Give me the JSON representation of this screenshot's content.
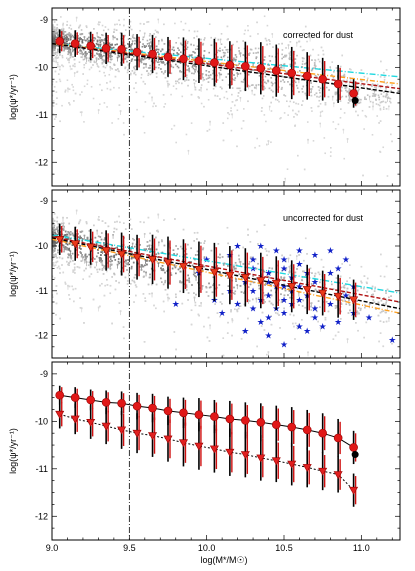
{
  "chart_data": [
    {
      "type": "scatter",
      "annotation": "corrected for dust",
      "ylabel": "log(ψ*/yr⁻¹)",
      "xlim": [
        9.0,
        11.25
      ],
      "ylim": [
        -12.5,
        -8.75
      ],
      "xticks": [
        9.0,
        9.5,
        10.0,
        10.5,
        11.0
      ],
      "yticks": [
        -9,
        -10,
        -11,
        -12
      ],
      "ytick_labels": [
        "-9",
        "-10",
        "-11",
        "-12"
      ],
      "vline_x": 9.5,
      "binned_medians": {
        "x": [
          9.05,
          9.15,
          9.25,
          9.35,
          9.45,
          9.55,
          9.65,
          9.75,
          9.85,
          9.95,
          10.05,
          10.15,
          10.25,
          10.35,
          10.45,
          10.55,
          10.65,
          10.75,
          10.85,
          10.95
        ],
        "y": [
          -9.45,
          -9.5,
          -9.55,
          -9.6,
          -9.62,
          -9.68,
          -9.72,
          -9.78,
          -9.82,
          -9.86,
          -9.9,
          -9.95,
          -9.98,
          -10.02,
          -10.07,
          -10.12,
          -10.18,
          -10.25,
          -10.35,
          -10.55
        ],
        "yerr": [
          0.25,
          0.28,
          0.3,
          0.33,
          0.35,
          0.38,
          0.4,
          0.42,
          0.45,
          0.47,
          0.5,
          0.5,
          0.52,
          0.55,
          0.55,
          0.55,
          0.5,
          0.45,
          0.4,
          0.3
        ]
      },
      "extra_point": {
        "x": 10.96,
        "y": -10.7
      },
      "fits": [
        {
          "x": [
            9.0,
            11.25
          ],
          "y": [
            -9.5,
            -10.2
          ],
          "color": "#20d8e0"
        },
        {
          "x": [
            9.0,
            11.25
          ],
          "y": [
            -9.5,
            -10.35
          ],
          "color": "#ffa020"
        },
        {
          "x": [
            9.0,
            11.25
          ],
          "y": [
            -9.5,
            -10.45
          ],
          "color": "#b01010"
        },
        {
          "x": [
            9.0,
            11.25
          ],
          "y": [
            -9.5,
            -10.55
          ],
          "color": "#000000"
        }
      ]
    },
    {
      "type": "scatter",
      "annotation": "uncorrected for dust",
      "ylabel": "log(ψ*/yr⁻¹)",
      "xlim": [
        9.0,
        11.25
      ],
      "ylim": [
        -12.5,
        -8.75
      ],
      "xticks": [
        9.0,
        9.5,
        10.0,
        10.5,
        11.0
      ],
      "yticks": [
        -9,
        -10,
        -11,
        -12
      ],
      "ytick_labels": [
        "-9",
        "-10",
        "-11",
        "-12"
      ],
      "vline_x": 9.5,
      "binned_medians": {
        "x": [
          9.05,
          9.15,
          9.25,
          9.35,
          9.45,
          9.55,
          9.65,
          9.75,
          9.85,
          9.95,
          10.05,
          10.15,
          10.25,
          10.35,
          10.45,
          10.55,
          10.65,
          10.75,
          10.85,
          10.95
        ],
        "y": [
          -9.85,
          -9.95,
          -10.02,
          -10.1,
          -10.18,
          -10.25,
          -10.3,
          -10.37,
          -10.45,
          -10.52,
          -10.58,
          -10.65,
          -10.7,
          -10.77,
          -10.83,
          -10.9,
          -10.97,
          -11.05,
          -11.12,
          -11.2
        ],
        "yerr": [
          0.35,
          0.38,
          0.4,
          0.45,
          0.48,
          0.5,
          0.55,
          0.58,
          0.6,
          0.62,
          0.65,
          0.65,
          0.65,
          0.62,
          0.6,
          0.58,
          0.55,
          0.5,
          0.48,
          0.45
        ]
      },
      "blue_stars": [
        [
          10.3,
          -10.5
        ],
        [
          10.4,
          -10.8
        ],
        [
          10.5,
          -11.2
        ],
        [
          10.6,
          -10.9
        ],
        [
          10.7,
          -11.4
        ],
        [
          10.5,
          -10.3
        ],
        [
          10.4,
          -11.6
        ],
        [
          10.8,
          -10.6
        ],
        [
          10.6,
          -11.8
        ],
        [
          10.2,
          -11.3
        ],
        [
          10.7,
          -10.2
        ],
        [
          10.3,
          -11.0
        ],
        [
          10.9,
          -11.1
        ],
        [
          10.5,
          -11.5
        ],
        [
          10.45,
          -10.1
        ],
        [
          10.65,
          -11.9
        ],
        [
          10.55,
          -10.7
        ],
        [
          10.35,
          -11.7
        ],
        [
          10.75,
          -11.0
        ],
        [
          10.25,
          -10.8
        ],
        [
          10.6,
          -10.4
        ],
        [
          10.85,
          -10.5
        ],
        [
          10.1,
          -11.5
        ],
        [
          10.4,
          -12.0
        ],
        [
          10.7,
          -11.6
        ],
        [
          10.15,
          -10.2
        ],
        [
          10.95,
          -10.9
        ],
        [
          10.5,
          -12.2
        ],
        [
          10.3,
          -10.3
        ],
        [
          10.8,
          -11.3
        ],
        [
          10.65,
          -10.6
        ],
        [
          10.45,
          -11.4
        ],
        [
          10.55,
          -11.0
        ],
        [
          10.35,
          -10.0
        ],
        [
          10.9,
          -10.3
        ],
        [
          9.95,
          -10.6
        ],
        [
          10.05,
          -11.2
        ],
        [
          10.6,
          -11.2
        ],
        [
          10.75,
          -11.8
        ],
        [
          10.25,
          -11.9
        ],
        [
          10.4,
          -10.6
        ],
        [
          10.5,
          -10.9
        ],
        [
          10.7,
          -10.8
        ],
        [
          10.2,
          -10.0
        ],
        [
          10.85,
          -11.7
        ],
        [
          9.8,
          -11.3
        ],
        [
          10.0,
          -10.3
        ],
        [
          10.6,
          -10.1
        ],
        [
          10.3,
          -11.4
        ],
        [
          10.95,
          -11.5
        ],
        [
          11.2,
          -12.1
        ],
        [
          11.05,
          -11.6
        ],
        [
          10.15,
          -11.0
        ],
        [
          10.45,
          -10.9
        ],
        [
          10.55,
          -11.3
        ],
        [
          10.65,
          -11.1
        ],
        [
          10.35,
          -11.2
        ],
        [
          10.8,
          -10.1
        ],
        [
          10.5,
          -10.5
        ],
        [
          10.4,
          -11.1
        ]
      ],
      "fits": [
        {
          "x": [
            9.0,
            11.25
          ],
          "y": [
            -9.75,
            -11.05
          ],
          "color": "#20d8e0"
        },
        {
          "x": [
            9.0,
            11.25
          ],
          "y": [
            -9.8,
            -11.25
          ],
          "color": "#b01010"
        },
        {
          "x": [
            9.0,
            11.25
          ],
          "y": [
            -9.82,
            -11.4
          ],
          "color": "#000000"
        },
        {
          "x": [
            9.0,
            11.25
          ],
          "y": [
            -9.85,
            -11.5
          ],
          "color": "#ffa020"
        }
      ]
    },
    {
      "type": "line",
      "ylabel": "log(ψ*/yr⁻¹)",
      "xlabel": "log(M*/M☉)",
      "xlim": [
        9.0,
        11.25
      ],
      "ylim": [
        -12.5,
        -8.75
      ],
      "xticks": [
        9.0,
        9.5,
        10.0,
        10.5,
        11.0
      ],
      "xtick_labels": [
        "9.0",
        "9.5",
        "10.0",
        "10.5",
        "11.0"
      ],
      "yticks": [
        -9,
        -10,
        -11,
        -12
      ],
      "ytick_labels": [
        "-9",
        "-10",
        "-11",
        "-12"
      ],
      "vline_x": 9.5,
      "series": [
        {
          "marker": "circle",
          "x": [
            9.05,
            9.15,
            9.25,
            9.35,
            9.45,
            9.55,
            9.65,
            9.75,
            9.85,
            9.95,
            10.05,
            10.15,
            10.25,
            10.35,
            10.45,
            10.55,
            10.65,
            10.75,
            10.85,
            10.95
          ],
          "y": [
            -9.45,
            -9.5,
            -9.55,
            -9.6,
            -9.62,
            -9.68,
            -9.72,
            -9.78,
            -9.82,
            -9.86,
            -9.9,
            -9.95,
            -9.98,
            -10.02,
            -10.07,
            -10.12,
            -10.18,
            -10.25,
            -10.35,
            -10.55
          ],
          "yerr": [
            0.2,
            0.22,
            0.22,
            0.25,
            0.25,
            0.28,
            0.3,
            0.3,
            0.32,
            0.35,
            0.35,
            0.38,
            0.38,
            0.4,
            0.4,
            0.42,
            0.42,
            0.42,
            0.4,
            0.35
          ]
        },
        {
          "marker": "triangle",
          "x": [
            9.05,
            9.15,
            9.25,
            9.35,
            9.45,
            9.55,
            9.65,
            9.75,
            9.85,
            9.95,
            10.05,
            10.15,
            10.25,
            10.35,
            10.45,
            10.55,
            10.65,
            10.75,
            10.85,
            10.95
          ],
          "y": [
            -9.85,
            -9.95,
            -10.02,
            -10.1,
            -10.18,
            -10.25,
            -10.3,
            -10.37,
            -10.45,
            -10.52,
            -10.58,
            -10.65,
            -10.7,
            -10.77,
            -10.83,
            -10.9,
            -10.97,
            -11.05,
            -11.12,
            -11.45
          ],
          "yerr": [
            0.3,
            0.32,
            0.35,
            0.38,
            0.4,
            0.42,
            0.45,
            0.48,
            0.5,
            0.5,
            0.5,
            0.5,
            0.48,
            0.48,
            0.45,
            0.45,
            0.42,
            0.4,
            0.38,
            0.35
          ]
        }
      ],
      "extra_point": {
        "x": 10.96,
        "y": -10.7
      }
    }
  ]
}
